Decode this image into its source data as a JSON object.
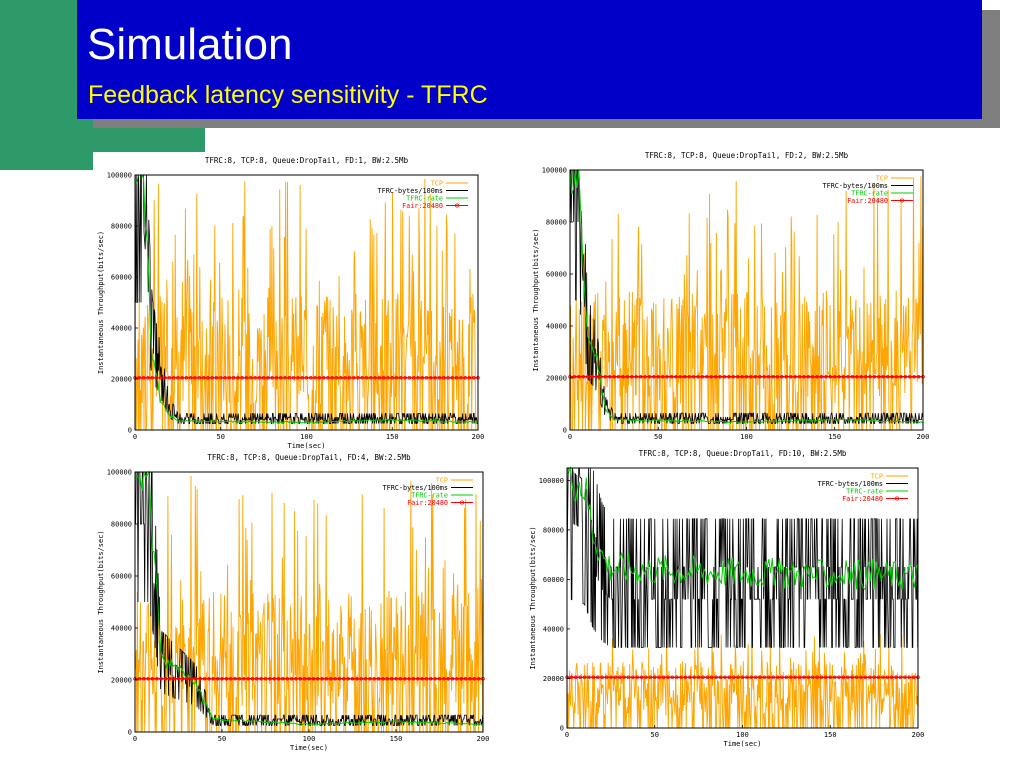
{
  "slide": {
    "title": "Simulation",
    "subtitle": "Feedback latency sensitivity - TFRC",
    "colors": {
      "title_bar": "#0000c8",
      "title_text": "#ffffff",
      "subtitle_text": "#ffff00",
      "accent_block": "#2e9a6a",
      "shadow": "#7f7f7f"
    }
  },
  "chart_data": [
    {
      "type": "line",
      "title": "TFRC:8, TCP:8, Queue:DropTail, FD:1, BW:2.5Mb",
      "xlabel": "Time(sec)",
      "ylabel": "Instantaneous Throughput(bits/sec)",
      "xlim": [
        0,
        200
      ],
      "ylim": [
        0,
        100000
      ],
      "xticks": [
        0,
        50,
        100,
        150,
        200
      ],
      "yticks": [
        0,
        20000,
        40000,
        60000,
        80000,
        100000
      ],
      "legend_position": "top-right",
      "series": [
        {
          "name": "TCP",
          "color": "#ffa500",
          "pattern": "spiky",
          "x": [
            0,
            200
          ],
          "base": 20000,
          "high": 100000
        },
        {
          "name": "TFRC-bytes/100ms",
          "color": "#000000",
          "pattern": "spiky",
          "x": [
            0,
            5,
            10,
            15,
            20,
            25,
            200
          ],
          "y": [
            100000,
            100000,
            40000,
            25000,
            10000,
            5000,
            5000
          ]
        },
        {
          "name": "TFRC-rate",
          "color": "#00cc00",
          "pattern": "line",
          "x": [
            0,
            5,
            10,
            15,
            20,
            25,
            100,
            150,
            200
          ],
          "y": [
            100000,
            95000,
            30000,
            12000,
            6000,
            3500,
            3000,
            4000,
            3000
          ]
        },
        {
          "name": "Fair:20480",
          "color": "#ff0000",
          "pattern": "marker-line",
          "x": [
            0,
            200
          ],
          "y": [
            20480,
            20480
          ]
        }
      ]
    },
    {
      "type": "line",
      "title": "TFRC:8, TCP:8, Queue:DropTail, FD:2, BW:2.5Mb",
      "xlabel": "",
      "ylabel": "Instantaneous Throughput(bits/sec)",
      "xlim": [
        0,
        200
      ],
      "ylim": [
        0,
        100000
      ],
      "xticks": [
        0,
        50,
        100,
        150,
        200
      ],
      "yticks": [
        0,
        20000,
        40000,
        60000,
        80000,
        100000
      ],
      "legend_position": "top-right",
      "series": [
        {
          "name": "TCP",
          "color": "#ffa500",
          "pattern": "spiky",
          "x": [
            0,
            200
          ],
          "base": 20000,
          "high": 100000
        },
        {
          "name": "TFRC-bytes/100ms",
          "color": "#000000",
          "pattern": "spiky",
          "x": [
            0,
            5,
            10,
            15,
            20,
            25,
            200
          ],
          "y": [
            100000,
            100000,
            40000,
            30000,
            10000,
            5000,
            5000
          ]
        },
        {
          "name": "TFRC-rate",
          "color": "#00cc00",
          "pattern": "line",
          "x": [
            0,
            5,
            10,
            15,
            20,
            25,
            100,
            150,
            200
          ],
          "y": [
            100000,
            95000,
            35000,
            28000,
            8000,
            4000,
            3000,
            4000,
            3000
          ]
        },
        {
          "name": "Fair:20480",
          "color": "#ff0000",
          "pattern": "marker-line",
          "x": [
            0,
            200
          ],
          "y": [
            20480,
            20480
          ]
        }
      ]
    },
    {
      "type": "line",
      "title": "TFRC:8, TCP:8, Queue:DropTail, FD:4, BW:2.5Mb",
      "xlabel": "Time(sec)",
      "ylabel": "Instantaneous Throughput(bits/sec)",
      "xlim": [
        0,
        200
      ],
      "ylim": [
        0,
        100000
      ],
      "xticks": [
        0,
        50,
        100,
        150,
        200
      ],
      "yticks": [
        0,
        20000,
        40000,
        60000,
        80000,
        100000
      ],
      "legend_position": "top-right",
      "series": [
        {
          "name": "TCP",
          "color": "#ffa500",
          "pattern": "spiky",
          "x": [
            0,
            200
          ],
          "base": 20000,
          "high": 100000
        },
        {
          "name": "TFRC-bytes/100ms",
          "color": "#000000",
          "pattern": "spiky",
          "x": [
            0,
            8,
            15,
            25,
            35,
            45,
            200
          ],
          "y": [
            100000,
            100000,
            30000,
            25000,
            20000,
            5000,
            5000
          ]
        },
        {
          "name": "TFRC-rate",
          "color": "#00cc00",
          "pattern": "line",
          "x": [
            0,
            8,
            15,
            25,
            35,
            45,
            100,
            150,
            200
          ],
          "y": [
            100000,
            95000,
            28000,
            25000,
            18000,
            5000,
            3000,
            4000,
            3000
          ]
        },
        {
          "name": "Fair:20480",
          "color": "#ff0000",
          "pattern": "marker-line",
          "x": [
            0,
            200
          ],
          "y": [
            20480,
            20480
          ]
        }
      ]
    },
    {
      "type": "line",
      "title": "TFRC:8, TCP:8, Queue:DropTail, FD:10, BW:2.5Mb",
      "xlabel": "Time(sec)",
      "ylabel": "Instantaneous Throughput(bits/sec)",
      "xlim": [
        0,
        200
      ],
      "ylim": [
        0,
        105000
      ],
      "xticks": [
        0,
        50,
        100,
        150,
        200
      ],
      "yticks": [
        0,
        20000,
        40000,
        60000,
        80000,
        100000
      ],
      "legend_position": "top-right",
      "series": [
        {
          "name": "TCP",
          "color": "#ffa500",
          "pattern": "spiky",
          "x": [
            0,
            200
          ],
          "base": 10000,
          "high": 40000
        },
        {
          "name": "TFRC-bytes/100ms",
          "color": "#000000",
          "pattern": "spiky",
          "x": [
            0,
            10,
            15,
            20,
            25,
            200
          ],
          "y": [
            105000,
            100000,
            80000,
            70000,
            65000,
            65000
          ]
        },
        {
          "name": "TFRC-rate",
          "color": "#00cc00",
          "pattern": "line",
          "x": [
            0,
            10,
            15,
            20,
            25,
            100,
            150,
            200
          ],
          "y": [
            105000,
            98000,
            80000,
            70000,
            65000,
            63000,
            62000,
            62000
          ]
        },
        {
          "name": "Fair:20480",
          "color": "#ff0000",
          "pattern": "marker-line",
          "x": [
            0,
            200
          ],
          "y": [
            20480,
            20480
          ]
        }
      ]
    }
  ]
}
